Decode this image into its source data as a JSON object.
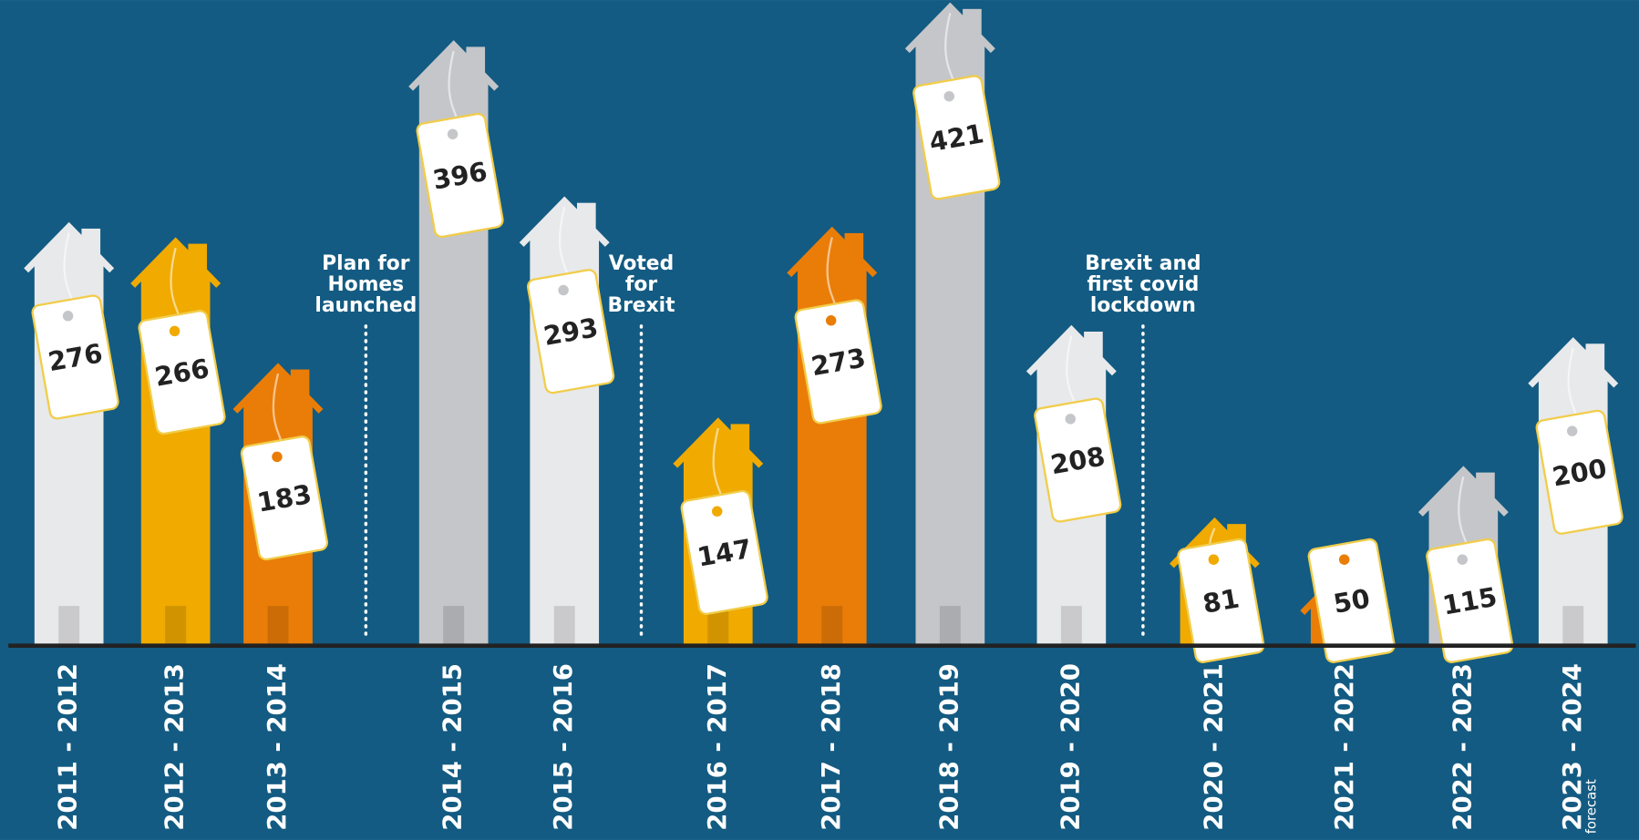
{
  "chart_data": {
    "type": "bar",
    "categories": [
      "2011 - 2012",
      "2012 - 2013",
      "2013 - 2014",
      "2014 - 2015",
      "2015 - 2016",
      "2016 - 2017",
      "2017 - 2018",
      "2018 - 2019",
      "2019 - 2020",
      "2020 - 2021",
      "2021 - 2022",
      "2022 - 2023",
      "2023 - 2024"
    ],
    "sublabels": [
      null,
      null,
      null,
      null,
      null,
      null,
      null,
      null,
      null,
      null,
      null,
      null,
      "forecast"
    ],
    "values": [
      276,
      266,
      183,
      396,
      293,
      147,
      273,
      421,
      208,
      81,
      50,
      115,
      200
    ],
    "colors": [
      "#e8e9eb",
      "#f0aa00",
      "#ea7d08",
      "#c5c6c9",
      "#e8e9eb",
      "#f0aa00",
      "#ea7d08",
      "#c5c6c9",
      "#e8e9eb",
      "#f0aa00",
      "#ea7d08",
      "#c5c6c9",
      "#e8e9eb"
    ],
    "background": "#135b82",
    "annotations": [
      {
        "lines": [
          "Plan for",
          "Homes",
          "launched"
        ]
      },
      {
        "lines": [
          "Voted",
          "for",
          "Brexit"
        ]
      },
      {
        "lines": [
          "Brexit and",
          "first covid",
          "lockdown"
        ]
      }
    ]
  }
}
